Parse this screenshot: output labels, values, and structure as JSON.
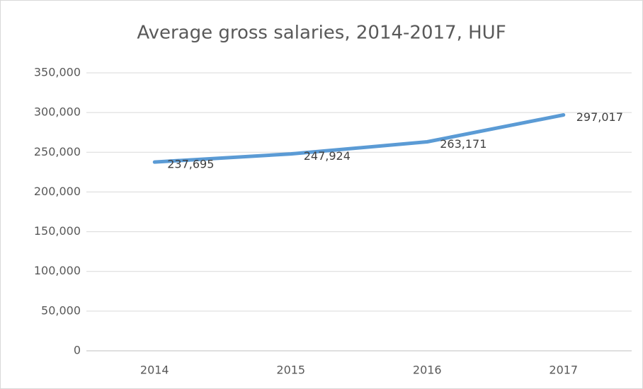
{
  "chart_data": {
    "type": "line",
    "title": "Average gross salaries, 2014-2017, HUF",
    "categories": [
      "2014",
      "2015",
      "2016",
      "2017"
    ],
    "values": [
      237695,
      247924,
      263171,
      297017
    ],
    "value_labels": [
      "237,695",
      "247,924",
      "263,171",
      "297,017"
    ],
    "color": "#5b9bd5",
    "ylim": [
      0,
      350000
    ],
    "yticks": [
      0,
      {
        "value": 50000,
        "label": "50,000"
      },
      {
        "value": 100000,
        "label": "100,000"
      },
      {
        "value": 150000,
        "label": "150,000"
      },
      {
        "value": 200000,
        "label": "200,000"
      },
      {
        "value": 250000,
        "label": "250,000"
      },
      {
        "value": 300000,
        "label": "300,000"
      },
      {
        "value": 350000,
        "label": "350,000"
      }
    ],
    "grid": true
  }
}
